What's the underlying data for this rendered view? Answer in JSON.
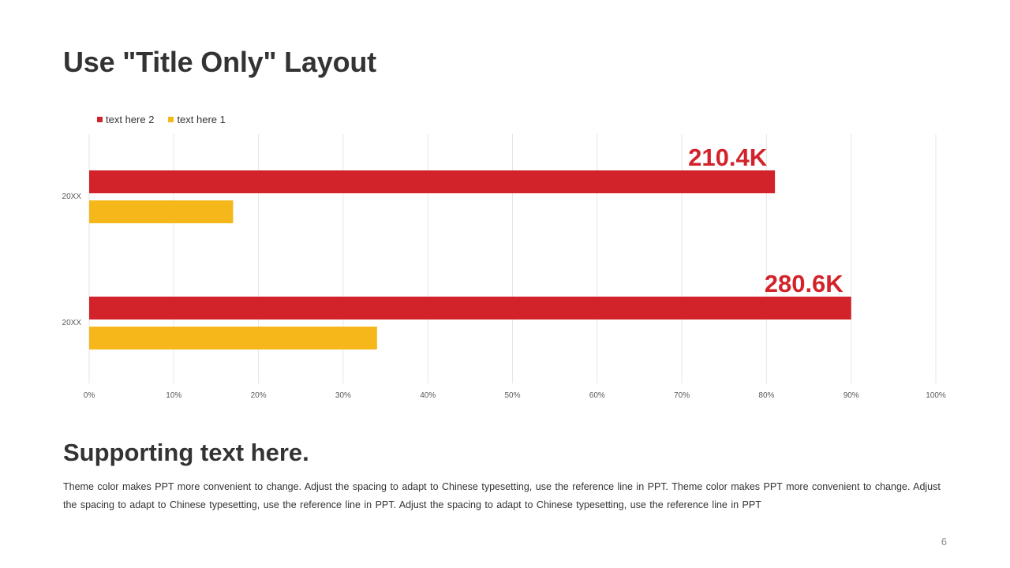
{
  "slide": {
    "title": "Use \"Title Only\" Layout",
    "supporting_title": "Supporting text here.",
    "body": "Theme color makes PPT more convenient  to change.  Adjust  the spacing  to adapt to Chinese   typesetting,  use  the  reference line  in  PPT.  Theme  color makes PPT more convenient  to change.  Adjust  the spacing  to adapt to Chinese  typesetting,  use  the  reference line  in  PPT. Adjust  the spacing  to adapt to Chinese  typesetting,  use  the  reference line  in  PPT",
    "page_number": "6"
  },
  "colors": {
    "red": "#D2232A",
    "yellow": "#F5B71A",
    "grid": "#E6E6E6",
    "text": "#333333"
  },
  "chart_data": {
    "type": "bar",
    "orientation": "horizontal",
    "categories": [
      "20XX",
      "20XX"
    ],
    "series": [
      {
        "name": "text here 2",
        "color": "#D2232A",
        "values": [
          81,
          90
        ]
      },
      {
        "name": "text here 1",
        "color": "#F5B71A",
        "values": [
          17,
          34
        ]
      }
    ],
    "data_labels": [
      {
        "series": 0,
        "category": 0,
        "text": "210.4K"
      },
      {
        "series": 0,
        "category": 1,
        "text": "280.6K"
      }
    ],
    "xlim": [
      0,
      100
    ],
    "x_ticks": [
      "0%",
      "10%",
      "20%",
      "30%",
      "40%",
      "50%",
      "60%",
      "70%",
      "80%",
      "90%",
      "100%"
    ],
    "grid": "vertical",
    "legend_position": "top-left"
  }
}
